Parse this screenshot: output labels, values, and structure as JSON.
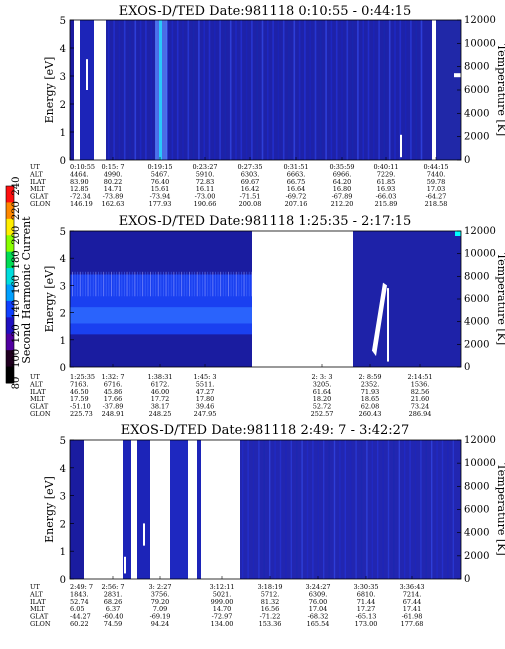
{
  "colorbar": {
    "label": "Second Harmonic Current",
    "ticks": [
      80,
      100,
      120,
      140,
      160,
      180,
      200,
      220,
      240
    ]
  },
  "orbit_row_labels": [
    "UT",
    "ALT",
    "ILAT",
    "MLT",
    "GLAT",
    "GLON"
  ],
  "panels": [
    {
      "title": "EXOS-D/TED    Date:981118   0:10:55 - 0:44:15",
      "ylabel_left": "Energy [eV]",
      "ylabel_right": "Temperature [K]",
      "orbit_columns": [
        [
          "0:10:55",
          "4464.",
          "83.90",
          "12.85",
          "-72.34",
          "146.19"
        ],
        [
          "0:15: 7",
          "4990.",
          "80.22",
          "14.71",
          "-73.89",
          "162.63"
        ],
        [
          "0:19:15",
          "5467.",
          "76.40",
          "15.61",
          "-73.94",
          "177.93"
        ],
        [
          "0:23:27",
          "5910.",
          "72.83",
          "16.11",
          "-73.00",
          "190.66"
        ],
        [
          "0:27:35",
          "6303.",
          "69.67",
          "16.42",
          "-71.51",
          "200.08"
        ],
        [
          "0:31:51",
          "6663.",
          "66.75",
          "16.64",
          "-69.72",
          "207.16"
        ],
        [
          "0:35:59",
          "6966.",
          "64.20",
          "16.80",
          "-67.89",
          "212.20"
        ],
        [
          "0:40:11",
          "7229.",
          "61.85",
          "16.93",
          "-66.03",
          "215.89"
        ],
        [
          "0:44:15",
          "7440.",
          "59.78",
          "17.03",
          "-64.27",
          "218.58"
        ]
      ]
    },
    {
      "title": "EXOS-D/TED    Date:981118   1:25:35 - 2:17:15",
      "ylabel_left": "Energy [eV]",
      "ylabel_right": "Temperature [K]",
      "orbit_columns": [
        [
          "1:25:35",
          "7163.",
          "46.50",
          "17.59",
          "-51.10",
          "225.73"
        ],
        [
          "1:32: 7",
          "6716.",
          "45.86",
          "17.66",
          "-37.89",
          "248.91"
        ],
        [
          "1:38:31",
          "6172.",
          "46.00",
          "17.72",
          "38.17",
          "248.25"
        ],
        [
          "1:45: 3",
          "5511.",
          "47.27",
          "17.80",
          "39.46",
          "247.95"
        ],
        [
          "2: 3: 3",
          "3205.",
          "61.64",
          "18.20",
          "52.72",
          "252.57"
        ],
        [
          "2: 8:59",
          "2352.",
          "71.93",
          "18.65",
          "62.08",
          "260.43"
        ],
        [
          "2:14:51",
          "1536.",
          "82.56",
          "21.60",
          "73.24",
          "286.94"
        ]
      ]
    },
    {
      "title": "EXOS-D/TED    Date:981118   2:49: 7 - 3:42:27",
      "ylabel_left": "Energy [eV]",
      "ylabel_right": "Temperature [K]",
      "orbit_columns": [
        [
          "2:49: 7",
          "1843.",
          "52.74",
          "6.05",
          "-44.27",
          "60.22"
        ],
        [
          "2:56: 7",
          "2831.",
          "68.26",
          "6.37",
          "-60.40",
          "74.59"
        ],
        [
          "3: 2:27",
          "3756.",
          "79.20",
          "7.09",
          "-69.19",
          "94.24"
        ],
        [
          "3:12:11",
          "5021.",
          "999.00",
          "14.70",
          "-72.97",
          "134.00"
        ],
        [
          "3:18:19",
          "5712.",
          "81.32",
          "16.56",
          "-71.22",
          "153.36"
        ],
        [
          "3:24:27",
          "6309.",
          "76.00",
          "17.04",
          "-68.32",
          "165.54"
        ],
        [
          "3:30:35",
          "6810.",
          "71.44",
          "17.27",
          "-65.13",
          "173.00"
        ],
        [
          "3:36:43",
          "7214.",
          "67.44",
          "17.41",
          "-61.98",
          "177.68"
        ]
      ]
    }
  ],
  "chart_data": [
    {
      "type": "heatmap",
      "title": "EXOS-D/TED    Date:981118   0:10:55 - 0:44:15",
      "xlabel": "",
      "ylabel": "Energy [eV]",
      "y2label": "Temperature [K]",
      "x_tick_labels": [
        "0:10:55",
        "0:15: 7",
        "0:19:15",
        "0:23:27",
        "0:27:35",
        "0:31:51",
        "0:35:59",
        "0:40:11",
        "0:44:15"
      ],
      "ylim": [
        0,
        5
      ],
      "y2lim": [
        0,
        12000
      ],
      "y_ticks": [
        0,
        1,
        2,
        3,
        4,
        5
      ],
      "y2_ticks": [
        0,
        2000,
        4000,
        6000,
        8000,
        10000,
        12000
      ],
      "colorbar_range": [
        80,
        240
      ]
    },
    {
      "type": "heatmap",
      "title": "EXOS-D/TED    Date:981118   1:25:35 - 2:17:15",
      "xlabel": "",
      "ylabel": "Energy [eV]",
      "y2label": "Temperature [K]",
      "x_tick_labels": [
        "1:25:35",
        "1:32: 7",
        "1:38:31",
        "1:45: 3",
        "2: 3: 3",
        "2: 8:59",
        "2:14:51"
      ],
      "ylim": [
        0,
        5
      ],
      "y2lim": [
        0,
        12000
      ],
      "y_ticks": [
        0,
        1,
        2,
        3,
        4,
        5
      ],
      "y2_ticks": [
        0,
        2000,
        4000,
        6000,
        8000,
        10000,
        12000
      ],
      "colorbar_range": [
        80,
        240
      ]
    },
    {
      "type": "heatmap",
      "title": "EXOS-D/TED    Date:981118   2:49: 7 - 3:42:27",
      "xlabel": "",
      "ylabel": "Energy [eV]",
      "y2label": "Temperature [K]",
      "x_tick_labels": [
        "2:49: 7",
        "2:56: 7",
        "3: 2:27",
        "3:12:11",
        "3:18:19",
        "3:24:27",
        "3:30:35",
        "3:36:43"
      ],
      "ylim": [
        0,
        5
      ],
      "y2lim": [
        0,
        12000
      ],
      "y_ticks": [
        0,
        1,
        2,
        3,
        4,
        5
      ],
      "y2_ticks": [
        0,
        2000,
        4000,
        6000,
        8000,
        10000,
        12000
      ],
      "colorbar_range": [
        80,
        240
      ]
    }
  ]
}
